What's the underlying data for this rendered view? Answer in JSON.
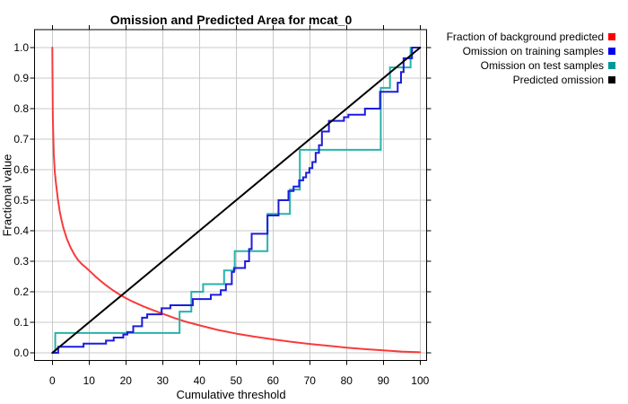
{
  "title": "Omission and Predicted Area for mcat_0",
  "axes": {
    "x_label": "Cumulative threshold",
    "y_label": "Fractional value"
  },
  "legend": {
    "position": "top-right",
    "items": [
      {
        "label": "Fraction of background predicted",
        "color": "#ff0000"
      },
      {
        "label": "Omission on training samples",
        "color": "#0000ee"
      },
      {
        "label": "Omission on test samples",
        "color": "#009999"
      },
      {
        "label": "Predicted omission",
        "color": "#000000"
      }
    ]
  },
  "colors": {
    "background": "#ffffff",
    "grid": "#c9c9c9",
    "border": "#000000",
    "tick_text": "#000000",
    "red_line": "#f93b3b",
    "blue_line": "#1c1cdd",
    "teal_line": "#28b2aa",
    "black_line": "#000000"
  },
  "chart_data": {
    "type": "line",
    "title": "Omission and Predicted Area for mcat_0",
    "xlabel": "Cumulative threshold",
    "ylabel": "Fractional value",
    "xlim": [
      0,
      100
    ],
    "ylim": [
      0.0,
      1.0
    ],
    "grid": true,
    "x_ticks": [
      "0",
      "10",
      "20",
      "30",
      "40",
      "50",
      "60",
      "70",
      "80",
      "90",
      "100"
    ],
    "x_tick_values": [
      0,
      10,
      20,
      30,
      40,
      50,
      60,
      70,
      80,
      90,
      100
    ],
    "y_ticks": [
      "0.0",
      "0.1",
      "0.2",
      "0.3",
      "0.4",
      "0.5",
      "0.6",
      "0.7",
      "0.8",
      "0.9",
      "1.0"
    ],
    "y_tick_values": [
      0,
      0.1,
      0.2,
      0.3,
      0.4,
      0.5,
      0.6,
      0.7,
      0.8,
      0.9,
      1.0
    ],
    "legend_position": "outside-top-right",
    "series": [
      {
        "name": "Fraction of background predicted",
        "color": "#f93b3b",
        "style": "line",
        "points": [
          [
            0,
            1.0
          ],
          [
            0.15,
            0.77
          ],
          [
            0.4,
            0.65
          ],
          [
            0.7,
            0.59
          ],
          [
            1,
            0.555
          ],
          [
            1.5,
            0.505
          ],
          [
            2,
            0.465
          ],
          [
            2.5,
            0.435
          ],
          [
            3,
            0.41
          ],
          [
            4,
            0.372
          ],
          [
            5,
            0.344
          ],
          [
            6,
            0.322
          ],
          [
            7,
            0.304
          ],
          [
            8,
            0.291
          ],
          [
            9,
            0.281
          ],
          [
            10,
            0.27
          ],
          [
            12,
            0.247
          ],
          [
            14,
            0.227
          ],
          [
            16,
            0.209
          ],
          [
            18,
            0.193
          ],
          [
            20,
            0.179
          ],
          [
            22,
            0.167
          ],
          [
            25,
            0.151
          ],
          [
            28,
            0.137
          ],
          [
            30,
            0.128
          ],
          [
            33,
            0.115
          ],
          [
            36,
            0.103
          ],
          [
            40,
            0.09
          ],
          [
            45,
            0.075
          ],
          [
            50,
            0.063
          ],
          [
            55,
            0.053
          ],
          [
            60,
            0.044
          ],
          [
            65,
            0.036
          ],
          [
            70,
            0.029
          ],
          [
            75,
            0.023
          ],
          [
            80,
            0.017
          ],
          [
            85,
            0.012
          ],
          [
            90,
            0.008
          ],
          [
            95,
            0.004
          ],
          [
            100,
            0.002
          ]
        ]
      },
      {
        "name": "Omission on test samples",
        "color": "#28b2aa",
        "style": "step",
        "start": [
          0,
          0
        ],
        "end_x": 100,
        "steps": [
          [
            0.8,
            0.065
          ],
          [
            34.6,
            0.135
          ],
          [
            37.8,
            0.2
          ],
          [
            41.0,
            0.225
          ],
          [
            46.7,
            0.27
          ],
          [
            49.6,
            0.333
          ],
          [
            58.5,
            0.455
          ],
          [
            64.6,
            0.535
          ],
          [
            67.3,
            0.665
          ],
          [
            89.3,
            0.868
          ],
          [
            91.8,
            0.935
          ],
          [
            97.4,
            1.0
          ]
        ]
      },
      {
        "name": "Omission on training samples",
        "color": "#1c1cdd",
        "style": "step",
        "start": [
          0,
          0
        ],
        "end_x": 100,
        "steps": [
          [
            1.6,
            0.02
          ],
          [
            8.5,
            0.03
          ],
          [
            14.6,
            0.04
          ],
          [
            16.7,
            0.05
          ],
          [
            19.3,
            0.06
          ],
          [
            20.4,
            0.068
          ],
          [
            22,
            0.087
          ],
          [
            24.4,
            0.115
          ],
          [
            25.8,
            0.126
          ],
          [
            29.7,
            0.146
          ],
          [
            32.1,
            0.156
          ],
          [
            38.2,
            0.176
          ],
          [
            43.1,
            0.19
          ],
          [
            45.8,
            0.205
          ],
          [
            47.2,
            0.225
          ],
          [
            48.8,
            0.265
          ],
          [
            49.4,
            0.278
          ],
          [
            52.4,
            0.3
          ],
          [
            53.5,
            0.34
          ],
          [
            54.2,
            0.39
          ],
          [
            58.5,
            0.45
          ],
          [
            61.5,
            0.5
          ],
          [
            64.2,
            0.53
          ],
          [
            65.6,
            0.545
          ],
          [
            67.1,
            0.565
          ],
          [
            68.2,
            0.575
          ],
          [
            69.0,
            0.59
          ],
          [
            69.9,
            0.605
          ],
          [
            70.7,
            0.625
          ],
          [
            71.6,
            0.655
          ],
          [
            72.5,
            0.68
          ],
          [
            73.3,
            0.725
          ],
          [
            75.2,
            0.76
          ],
          [
            79.3,
            0.772
          ],
          [
            80.5,
            0.78
          ],
          [
            85.0,
            0.8
          ],
          [
            89.1,
            0.855
          ],
          [
            93.9,
            0.885
          ],
          [
            94.8,
            0.92
          ],
          [
            95.5,
            0.965
          ],
          [
            97.8,
            1.0
          ]
        ]
      },
      {
        "name": "Predicted omission",
        "color": "#000000",
        "style": "line",
        "points": [
          [
            0,
            0
          ],
          [
            100,
            1.0
          ]
        ]
      }
    ]
  }
}
